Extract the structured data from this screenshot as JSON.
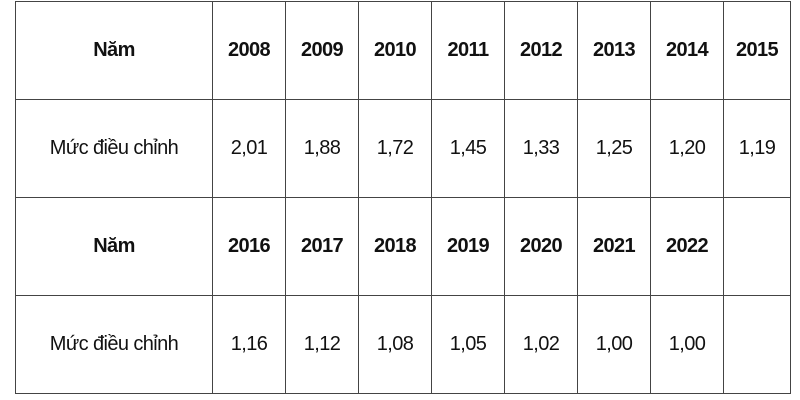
{
  "table": {
    "rows": [
      [
        "Năm",
        "2008",
        "2009",
        "2010",
        "2011",
        "2012",
        "2013",
        "2014",
        "2015"
      ],
      [
        "Mức điều chỉnh",
        "2,01",
        "1,88",
        "1,72",
        "1,45",
        "1,33",
        "1,25",
        "1,20",
        "1,19"
      ],
      [
        "Năm",
        "2016",
        "2017",
        "2018",
        "2019",
        "2020",
        "2021",
        "2022"
      ],
      [
        "Mức điều chỉnh",
        "1,16",
        "1,12",
        "1,08",
        "1,05",
        "1,02",
        "1,00",
        "1,00"
      ]
    ]
  }
}
